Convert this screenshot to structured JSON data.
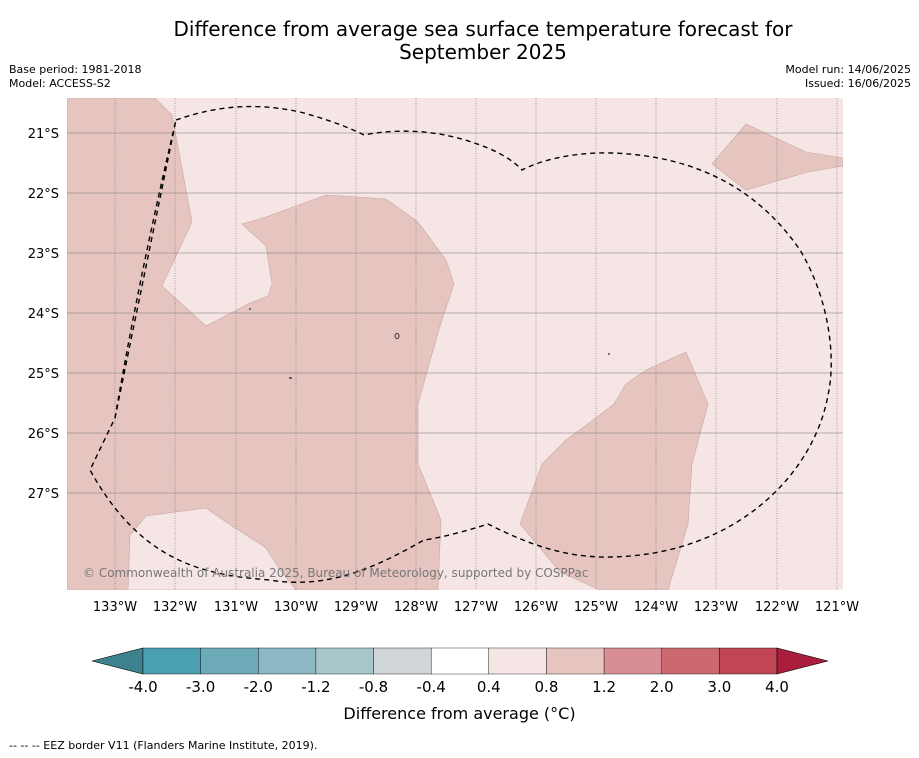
{
  "header": {
    "title_line1": "Difference from average sea surface temperature forecast for",
    "title_line2": "September 2025",
    "base_period": "Base period: 1981-2018",
    "model": "Model: ACCESS-S2",
    "model_run": "Model run: 14/06/2025",
    "issued": "Issued: 16/06/2025"
  },
  "map": {
    "lat_labels": [
      "21°S",
      "22°S",
      "23°S",
      "24°S",
      "25°S",
      "26°S",
      "27°S"
    ],
    "lon_labels": [
      "133°W",
      "132°W",
      "131°W",
      "130°W",
      "129°W",
      "128°W",
      "127°W",
      "126°W",
      "125°W",
      "124°W",
      "123°W",
      "122°W",
      "121°W"
    ],
    "copyright": "© Commonwealth of Australia 2025, Bureau of Meteorology, supported by COSPPac",
    "colors": {
      "anomaly_0_4_to_0_8": "#f5e6e5",
      "anomaly_0_8_to_1_2": "#e6c5c1"
    }
  },
  "colorbar": {
    "title": "Difference from average (°C)",
    "tick_labels": [
      "-4.0",
      "-3.0",
      "-2.0",
      "-1.2",
      "-0.8",
      "-0.4",
      "0.4",
      "0.8",
      "1.2",
      "2.0",
      "3.0",
      "4.0"
    ],
    "colors": [
      "#4a9fb0",
      "#6eabb9",
      "#8bb8c3",
      "#a8c7cb",
      "#d0d6da",
      "#ffffff",
      "#f5e6e5",
      "#e6c5c1",
      "#d78f95",
      "#cb6870",
      "#c04655"
    ],
    "under_color": "#3e8290",
    "over_color": "#a91d3d"
  },
  "footnote": "-- -- -- EEZ border V11 (Flanders Marine Institute, 2019)."
}
